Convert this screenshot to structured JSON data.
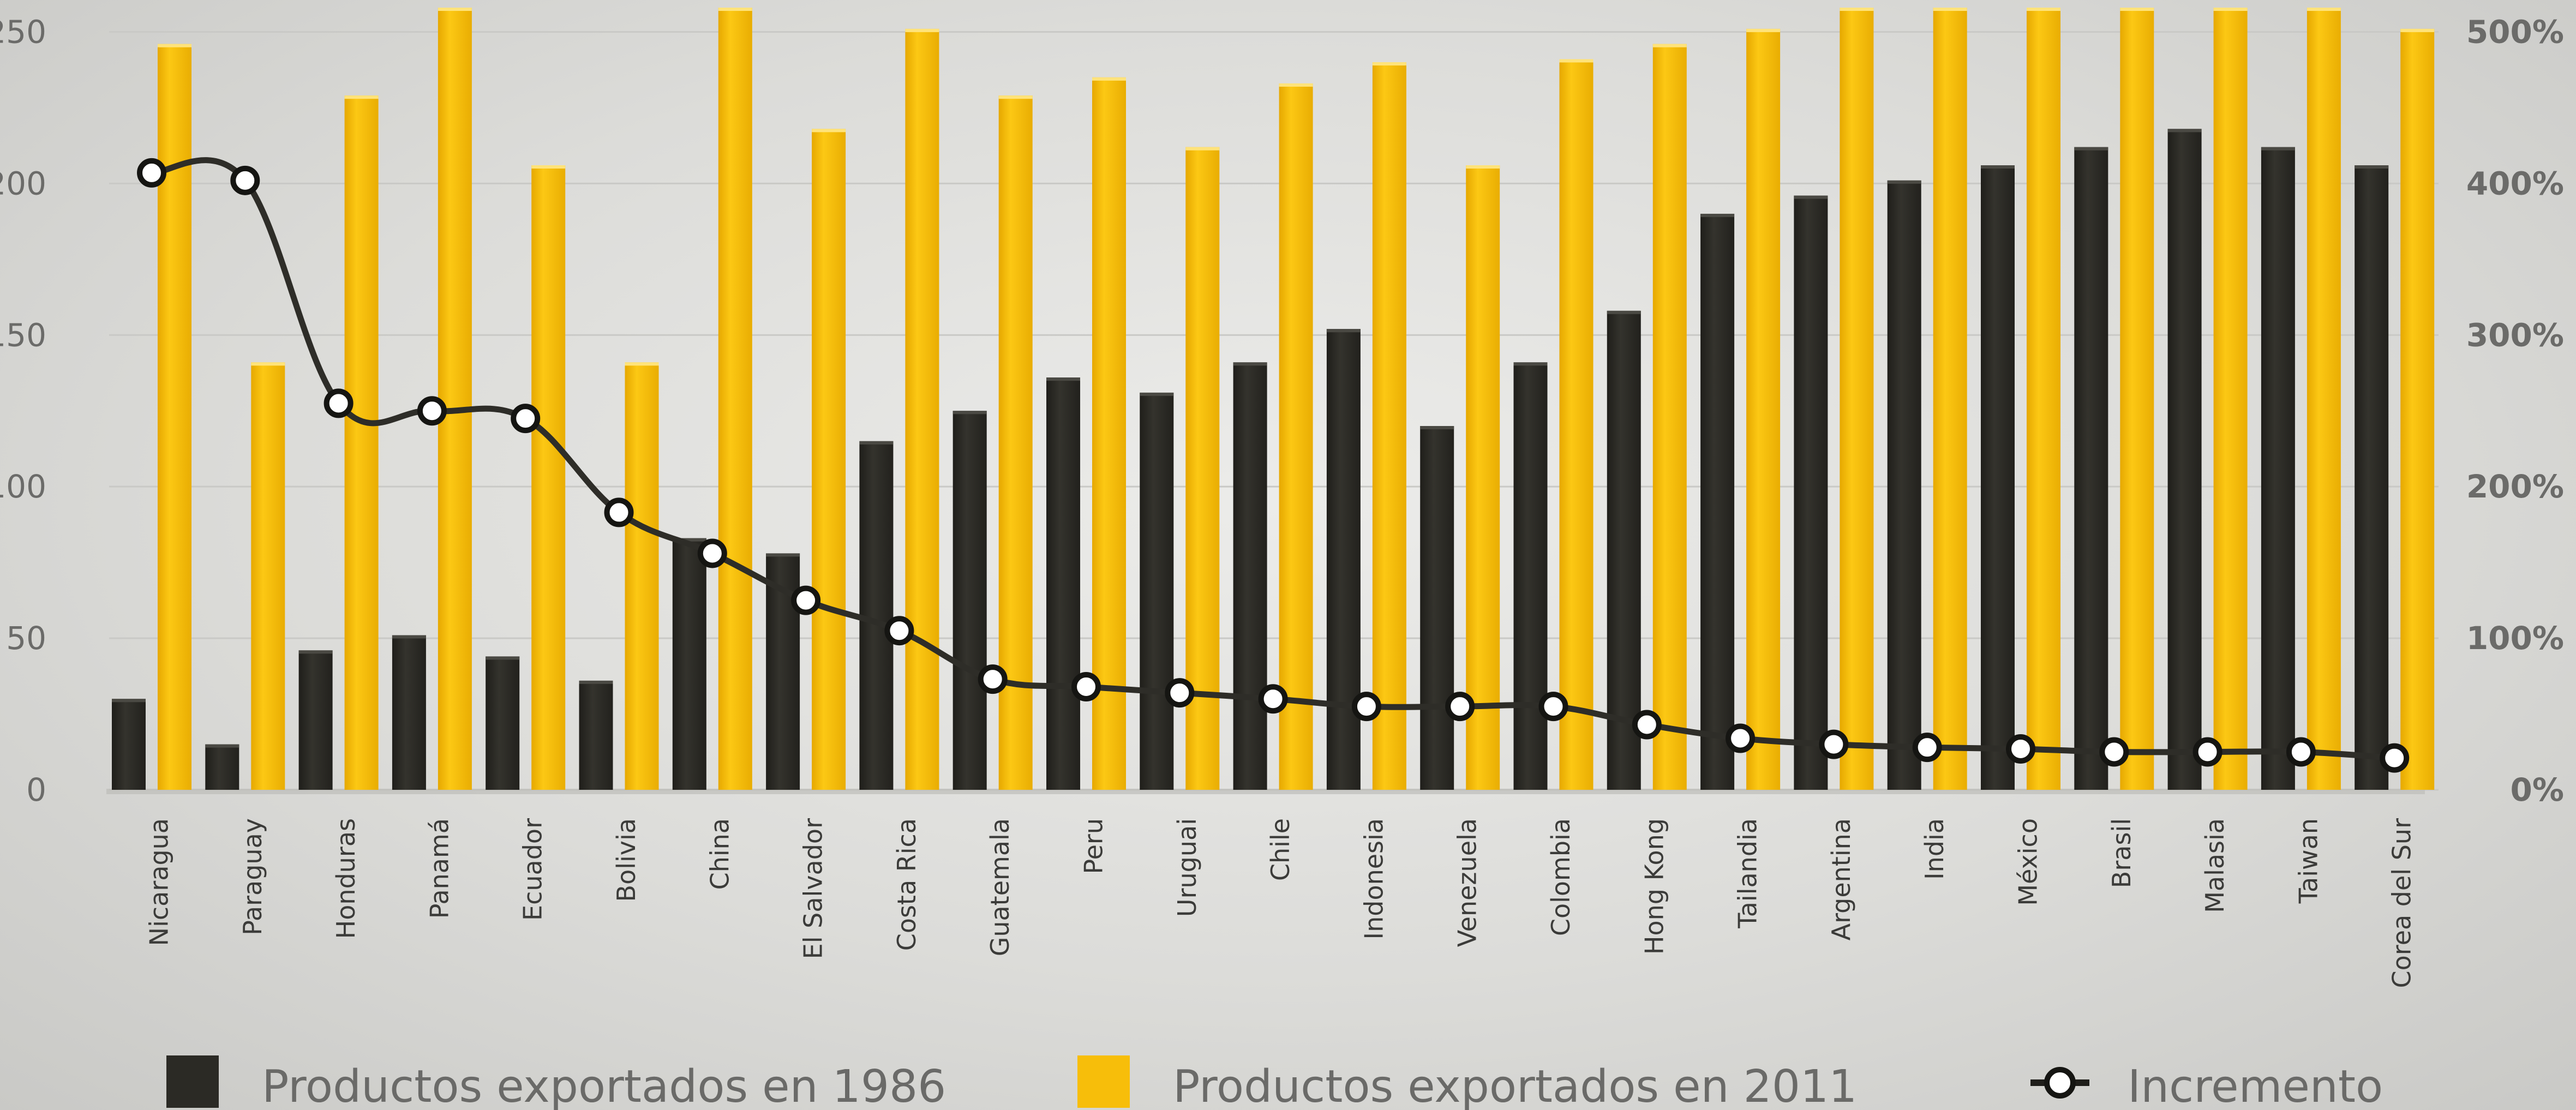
{
  "chart_data": {
    "type": "bar",
    "categories": [
      "Nicaragua",
      "Paraguay",
      "Honduras",
      "Panamá",
      "Ecuador",
      "Bolivia",
      "China",
      "El Salvador",
      "Costa Rica",
      "Guatemala",
      "Peru",
      "Uruguai",
      "Chile",
      "Indonesia",
      "Venezuela",
      "Colombia",
      "Hong Kong",
      "Tailandia",
      "Argentina",
      "India",
      "México",
      "Brasil",
      "Malasia",
      "Taiwan",
      "Corea del Sur"
    ],
    "series": [
      {
        "name": "Productos exportados en 1986",
        "type": "bar",
        "axis": "left",
        "color": "#2b2a25",
        "values": [
          30,
          15,
          46,
          51,
          44,
          36,
          83,
          78,
          115,
          125,
          136,
          131,
          141,
          152,
          120,
          141,
          158,
          190,
          196,
          201,
          206,
          212,
          218,
          212,
          206
        ]
      },
      {
        "name": "Productos exportados en 2011",
        "type": "bar",
        "axis": "left",
        "color": "#f7be0a",
        "values": [
          246,
          141,
          229,
          258,
          206,
          141,
          258,
          218,
          251,
          229,
          235,
          212,
          233,
          240,
          206,
          241,
          246,
          251,
          258,
          258,
          258,
          258,
          258,
          258,
          251
        ]
      },
      {
        "name": "Incremento",
        "type": "line",
        "axis": "right",
        "color": "#2e2d28",
        "values": [
          407,
          402,
          255,
          250,
          245,
          183,
          156,
          125,
          105,
          73,
          68,
          64,
          60,
          55,
          55,
          55,
          43,
          34,
          30,
          28,
          27,
          25,
          25,
          25,
          21
        ]
      }
    ],
    "y_left": {
      "ticks": [
        "250",
        "200",
        "150",
        "100",
        "50",
        "0"
      ],
      "range": [
        0,
        258
      ]
    },
    "y_right": {
      "ticks": [
        "500%",
        "400%",
        "300%",
        "200%",
        "100%",
        "0%"
      ],
      "range": [
        0,
        516
      ]
    },
    "grid": true,
    "legend_position": "bottom"
  }
}
